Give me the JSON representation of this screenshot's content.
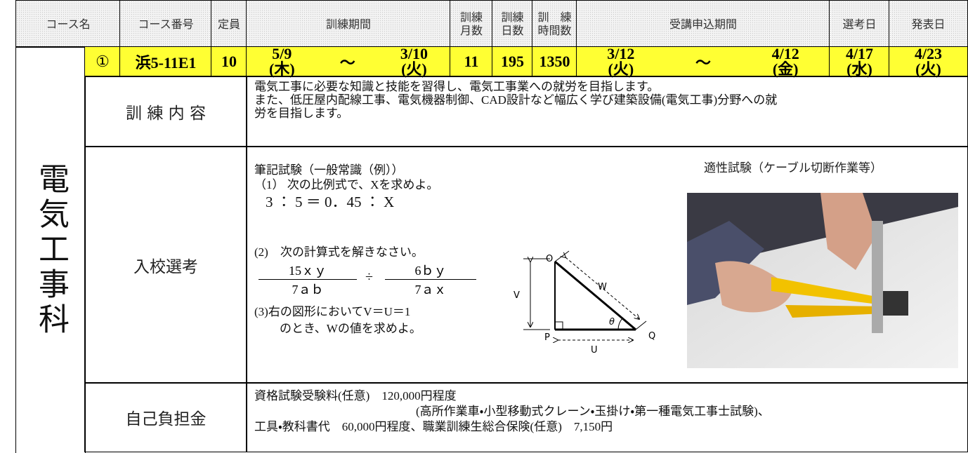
{
  "table": {
    "headers": [
      [
        "コース名"
      ],
      [
        "コース番号"
      ],
      [
        "定員"
      ],
      [
        "訓練期間"
      ],
      [
        "訓練",
        "月数"
      ],
      [
        "訓練",
        "日数"
      ],
      [
        "訓　練",
        "時間数"
      ],
      [
        "受講申込期間"
      ],
      [
        "選考日"
      ],
      [
        "発表日"
      ]
    ],
    "course": {
      "name": "電気工事科",
      "mark": "①",
      "code": "浜5-11E1",
      "capacity": "10",
      "period": {
        "start": "5/9",
        "start_day": "(木)",
        "tilde": "～",
        "end": "3/10",
        "end_day": "(火)"
      },
      "months": "11",
      "days": "195",
      "hours": "1350",
      "application": {
        "start": "3/12",
        "start_day": "(火)",
        "tilde": "～",
        "end": "4/12",
        "end_day": "(金)"
      },
      "selection": {
        "date": "4/17",
        "day": "(水)"
      },
      "announcement": {
        "date": "4/23",
        "day": "(火)"
      }
    },
    "content": {
      "label": "訓 練 内 容",
      "lines": [
        "電気工事に必要な知識と技能を習得し、電気工事業への就労を目指します。",
        "また、低圧屋内配線工事、電気機器制御、CAD設計など幅広く学び建築設備(電気工事)分野への就",
        "労を目指します。"
      ]
    },
    "selection_exam": {
      "label": "入校選考",
      "written_title": "筆記試験（一般常識（例））",
      "q1": "（1） 次の比例式で、Xを求めよ。",
      "q1_formula": "3 ： 5 ＝ 0．45 ： X",
      "q2": "(2)　次の計算式を解きなさい。",
      "q2_fraction1": {
        "numerator": "15ｘｙ",
        "denominator": "7ａｂ"
      },
      "q2_operator": "÷",
      "q2_fraction2": {
        "numerator": "6ｂｙ",
        "denominator": "7ａｘ"
      },
      "q3": [
        "(3)右の図形においてV＝U＝1",
        "のとき、Wの値を求めよ。"
      ],
      "diagram_labels": {
        "O": "O",
        "V": "V",
        "W": "W",
        "theta": "θ",
        "P": "P",
        "Q": "Q",
        "U": "U"
      },
      "aptitude_title": "適性試験（ケーブル切断作業等）"
    },
    "cost": {
      "label": "自己負担金",
      "lines": [
        "資格試験受験料(任意)　120,000円程度",
        "(高所作業車・小型移動式クレーン・玉掛け・第一種電気工事士試験)、",
        "工具・教科書代　60,000円程度、職業訓練生総合保険(任意)　7,150円"
      ]
    }
  }
}
